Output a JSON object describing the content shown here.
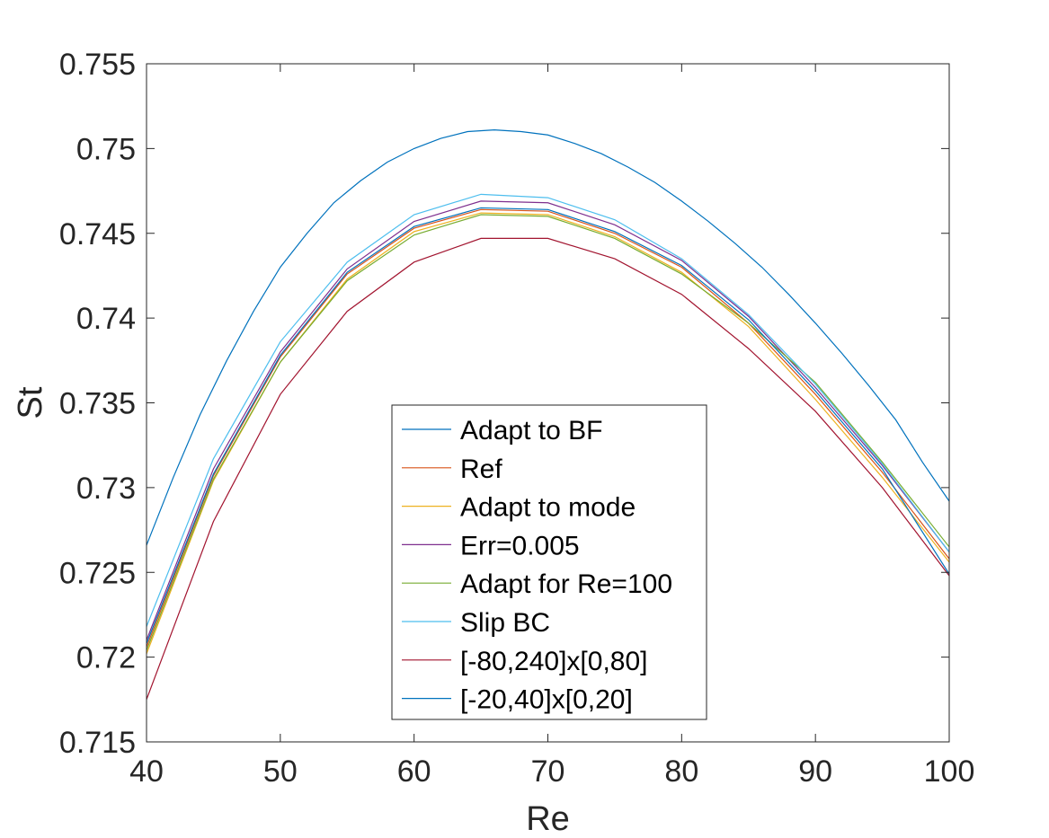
{
  "chart_data": {
    "type": "line",
    "title": "",
    "xlabel": "Re",
    "ylabel": "St",
    "xlim": [
      40,
      100
    ],
    "ylim": [
      0.715,
      0.755
    ],
    "xticks": [
      40,
      50,
      60,
      70,
      80,
      90,
      100
    ],
    "xtick_labels": [
      "40",
      "50",
      "60",
      "70",
      "80",
      "90",
      "100"
    ],
    "yticks": [
      0.715,
      0.72,
      0.725,
      0.73,
      0.735,
      0.74,
      0.745,
      0.75,
      0.755
    ],
    "ytick_labels": [
      "0.715",
      "0.72",
      "0.725",
      "0.73",
      "0.735",
      "0.74",
      "0.745",
      "0.75",
      "0.755"
    ],
    "grid": false,
    "legend_position": "bottom-center",
    "series": [
      {
        "name": "Adapt to BF",
        "color": "#0072BD",
        "x": [
          40,
          42,
          44,
          46,
          48,
          50,
          52,
          54,
          56,
          58,
          60,
          62,
          64,
          66,
          68,
          70,
          72,
          74,
          76,
          78,
          80,
          82,
          84,
          86,
          88,
          90,
          92,
          94,
          96,
          98,
          100
        ],
        "y": [
          0.7266,
          0.7306,
          0.7343,
          0.7375,
          0.7404,
          0.743,
          0.745,
          0.7468,
          0.7481,
          0.7492,
          0.75,
          0.7506,
          0.751,
          0.7511,
          0.751,
          0.7508,
          0.7503,
          0.7497,
          0.7489,
          0.748,
          0.7469,
          0.7457,
          0.7444,
          0.743,
          0.7414,
          0.7397,
          0.7379,
          0.736,
          0.734,
          0.7315,
          0.7292
        ]
      },
      {
        "name": "Ref",
        "color": "#D95319",
        "x": [
          40,
          45,
          50,
          55,
          60,
          65,
          70,
          75,
          80,
          85,
          90,
          95,
          100
        ],
        "y": [
          0.7206,
          0.7307,
          0.7377,
          0.7426,
          0.7453,
          0.7464,
          0.7463,
          0.745,
          0.743,
          0.7397,
          0.7355,
          0.7309,
          0.7258
        ]
      },
      {
        "name": "Adapt to mode",
        "color": "#EDB120",
        "x": [
          40,
          45,
          50,
          55,
          60,
          65,
          70,
          75,
          80,
          85,
          90,
          95,
          100
        ],
        "y": [
          0.7202,
          0.7304,
          0.7374,
          0.7423,
          0.7451,
          0.7462,
          0.7461,
          0.7448,
          0.7427,
          0.7395,
          0.7352,
          0.7306,
          0.7256
        ]
      },
      {
        "name": "Err=0.005",
        "color": "#7E2F8E",
        "x": [
          40,
          45,
          50,
          55,
          60,
          65,
          70,
          75,
          80,
          85,
          90,
          95,
          100
        ],
        "y": [
          0.721,
          0.7311,
          0.738,
          0.7429,
          0.7457,
          0.7469,
          0.7468,
          0.7455,
          0.7434,
          0.7401,
          0.7359,
          0.7313,
          0.7262
        ]
      },
      {
        "name": "Adapt for Re=100",
        "color": "#77AC30",
        "x": [
          40,
          45,
          50,
          55,
          60,
          65,
          70,
          75,
          80,
          85,
          90,
          95,
          100
        ],
        "y": [
          0.7204,
          0.7305,
          0.7374,
          0.7422,
          0.7449,
          0.7461,
          0.746,
          0.7447,
          0.7426,
          0.7397,
          0.7362,
          0.7315,
          0.7265
        ]
      },
      {
        "name": "Slip BC",
        "color": "#4DBEEE",
        "x": [
          40,
          45,
          50,
          55,
          60,
          65,
          70,
          75,
          80,
          85,
          90,
          95,
          100
        ],
        "y": [
          0.7218,
          0.7317,
          0.7386,
          0.7433,
          0.7461,
          0.7473,
          0.7471,
          0.7458,
          0.7435,
          0.7402,
          0.7361,
          0.7314,
          0.7262
        ]
      },
      {
        "name": "[-80,240]x[0,80]",
        "color": "#A2142F",
        "x": [
          40,
          45,
          50,
          55,
          60,
          65,
          70,
          75,
          80,
          85,
          90,
          95,
          100
        ],
        "y": [
          0.7175,
          0.728,
          0.7355,
          0.7404,
          0.7433,
          0.7447,
          0.7447,
          0.7435,
          0.7414,
          0.7382,
          0.7345,
          0.73,
          0.7248
        ]
      },
      {
        "name": "[-20,40]x[0,20]",
        "color": "#0072BD",
        "x": [
          40,
          45,
          50,
          55,
          60,
          65,
          70,
          75,
          80,
          85,
          90,
          95,
          100
        ],
        "y": [
          0.7208,
          0.7308,
          0.7378,
          0.7427,
          0.7454,
          0.7465,
          0.7464,
          0.7451,
          0.7431,
          0.7399,
          0.7357,
          0.7311,
          0.7249
        ]
      }
    ]
  }
}
